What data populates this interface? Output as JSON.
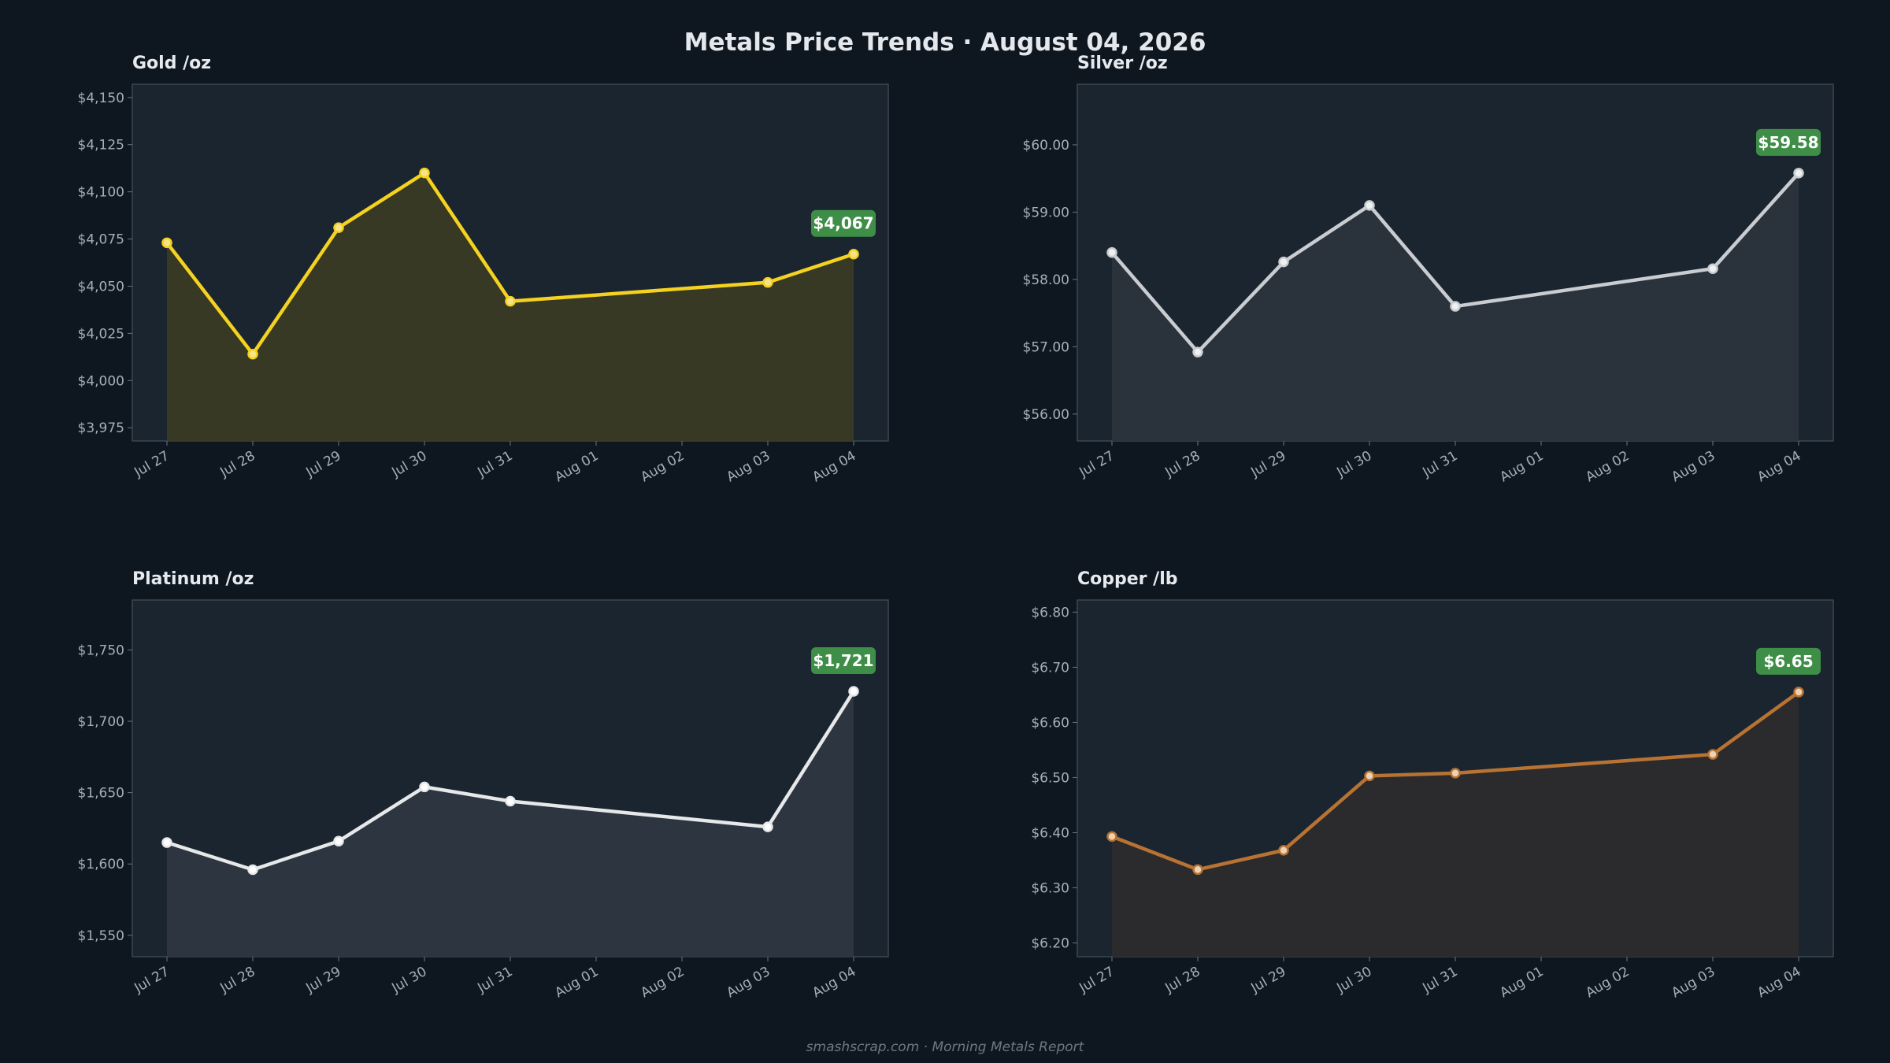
{
  "header": {
    "title": "Metals Price Trends  ·  August 04, 2026"
  },
  "footer": {
    "text": "smashscrap.com  ·  Morning Metals Report"
  },
  "colors": {
    "background": "#0e1720",
    "panel": "#1b2530",
    "panel_border": "#3a4650",
    "badge": "#3e8e47"
  },
  "chart_data": [
    {
      "type": "line",
      "title": "Gold  /oz",
      "x": [
        "Jul 27",
        "Jul 28",
        "Jul 29",
        "Jul 30",
        "Jul 31",
        "Aug 03",
        "Aug 04"
      ],
      "x_ticks": [
        "Jul 27",
        "Jul 28",
        "Jul 29",
        "Jul 30",
        "Jul 31",
        "Aug 01",
        "Aug 02",
        "Aug 03",
        "Aug 04"
      ],
      "values": [
        4073,
        4014,
        4081,
        4110,
        4042,
        4052,
        4067
      ],
      "ylim": [
        3968,
        4157
      ],
      "y_ticks": [
        3975,
        4000,
        4025,
        4050,
        4075,
        4100,
        4125,
        4150
      ],
      "y_tick_labels": [
        "$3,975",
        "$4,000",
        "$4,025",
        "$4,050",
        "$4,075",
        "$4,100",
        "$4,125",
        "$4,150"
      ],
      "last_label": "$4,067",
      "line_color": "#f4d21f",
      "fill_color": "#3a3a24",
      "marker_stroke": "#f4d21f",
      "marker_fill": "#f7e48a",
      "grid": false
    },
    {
      "type": "line",
      "title": "Silver  /oz",
      "x": [
        "Jul 27",
        "Jul 28",
        "Jul 29",
        "Jul 30",
        "Jul 31",
        "Aug 03",
        "Aug 04"
      ],
      "x_ticks": [
        "Jul 27",
        "Jul 28",
        "Jul 29",
        "Jul 30",
        "Jul 31",
        "Aug 01",
        "Aug 02",
        "Aug 03",
        "Aug 04"
      ],
      "values": [
        58.4,
        56.92,
        58.26,
        59.1,
        57.6,
        58.16,
        59.58
      ],
      "ylim": [
        55.6,
        60.9
      ],
      "y_ticks": [
        56,
        57,
        58,
        59,
        60
      ],
      "y_tick_labels": [
        "$56.00",
        "$57.00",
        "$58.00",
        "$59.00",
        "$60.00"
      ],
      "last_label": "$59.58",
      "line_color": "#c9cdd1",
      "fill_color": "#2b333d",
      "marker_stroke": "#c9cdd1",
      "marker_fill": "#eef0f2",
      "grid": false
    },
    {
      "type": "line",
      "title": "Platinum  /oz",
      "x": [
        "Jul 27",
        "Jul 28",
        "Jul 29",
        "Jul 30",
        "Jul 31",
        "Aug 03",
        "Aug 04"
      ],
      "x_ticks": [
        "Jul 27",
        "Jul 28",
        "Jul 29",
        "Jul 30",
        "Jul 31",
        "Aug 01",
        "Aug 02",
        "Aug 03",
        "Aug 04"
      ],
      "values": [
        1615,
        1596,
        1616,
        1654,
        1644,
        1626,
        1721
      ],
      "ylim": [
        1535,
        1785
      ],
      "y_ticks": [
        1550,
        1600,
        1650,
        1700,
        1750
      ],
      "y_tick_labels": [
        "$1,550",
        "$1,600",
        "$1,650",
        "$1,700",
        "$1,750"
      ],
      "last_label": "$1,721",
      "line_color": "#e6e8ea",
      "fill_color": "#2e3741",
      "marker_stroke": "#e6e8ea",
      "marker_fill": "#ffffff",
      "grid": false
    },
    {
      "type": "line",
      "title": "Copper  /lb",
      "x": [
        "Jul 27",
        "Jul 28",
        "Jul 29",
        "Jul 30",
        "Jul 31",
        "Aug 03",
        "Aug 04"
      ],
      "x_ticks": [
        "Jul 27",
        "Jul 28",
        "Jul 29",
        "Jul 30",
        "Jul 31",
        "Aug 01",
        "Aug 02",
        "Aug 03",
        "Aug 04"
      ],
      "values": [
        6.393,
        6.333,
        6.368,
        6.503,
        6.508,
        6.542,
        6.655
      ],
      "ylim": [
        6.175,
        6.822
      ],
      "y_ticks": [
        6.2,
        6.3,
        6.4,
        6.5,
        6.6,
        6.7,
        6.8
      ],
      "y_tick_labels": [
        "$6.20",
        "$6.30",
        "$6.40",
        "$6.50",
        "$6.60",
        "$6.70",
        "$6.80"
      ],
      "last_label": "$6.65",
      "line_color": "#b87333",
      "fill_color": "#2c2a2c",
      "marker_stroke": "#b87333",
      "marker_fill": "#ecd2b4",
      "grid": false
    }
  ]
}
